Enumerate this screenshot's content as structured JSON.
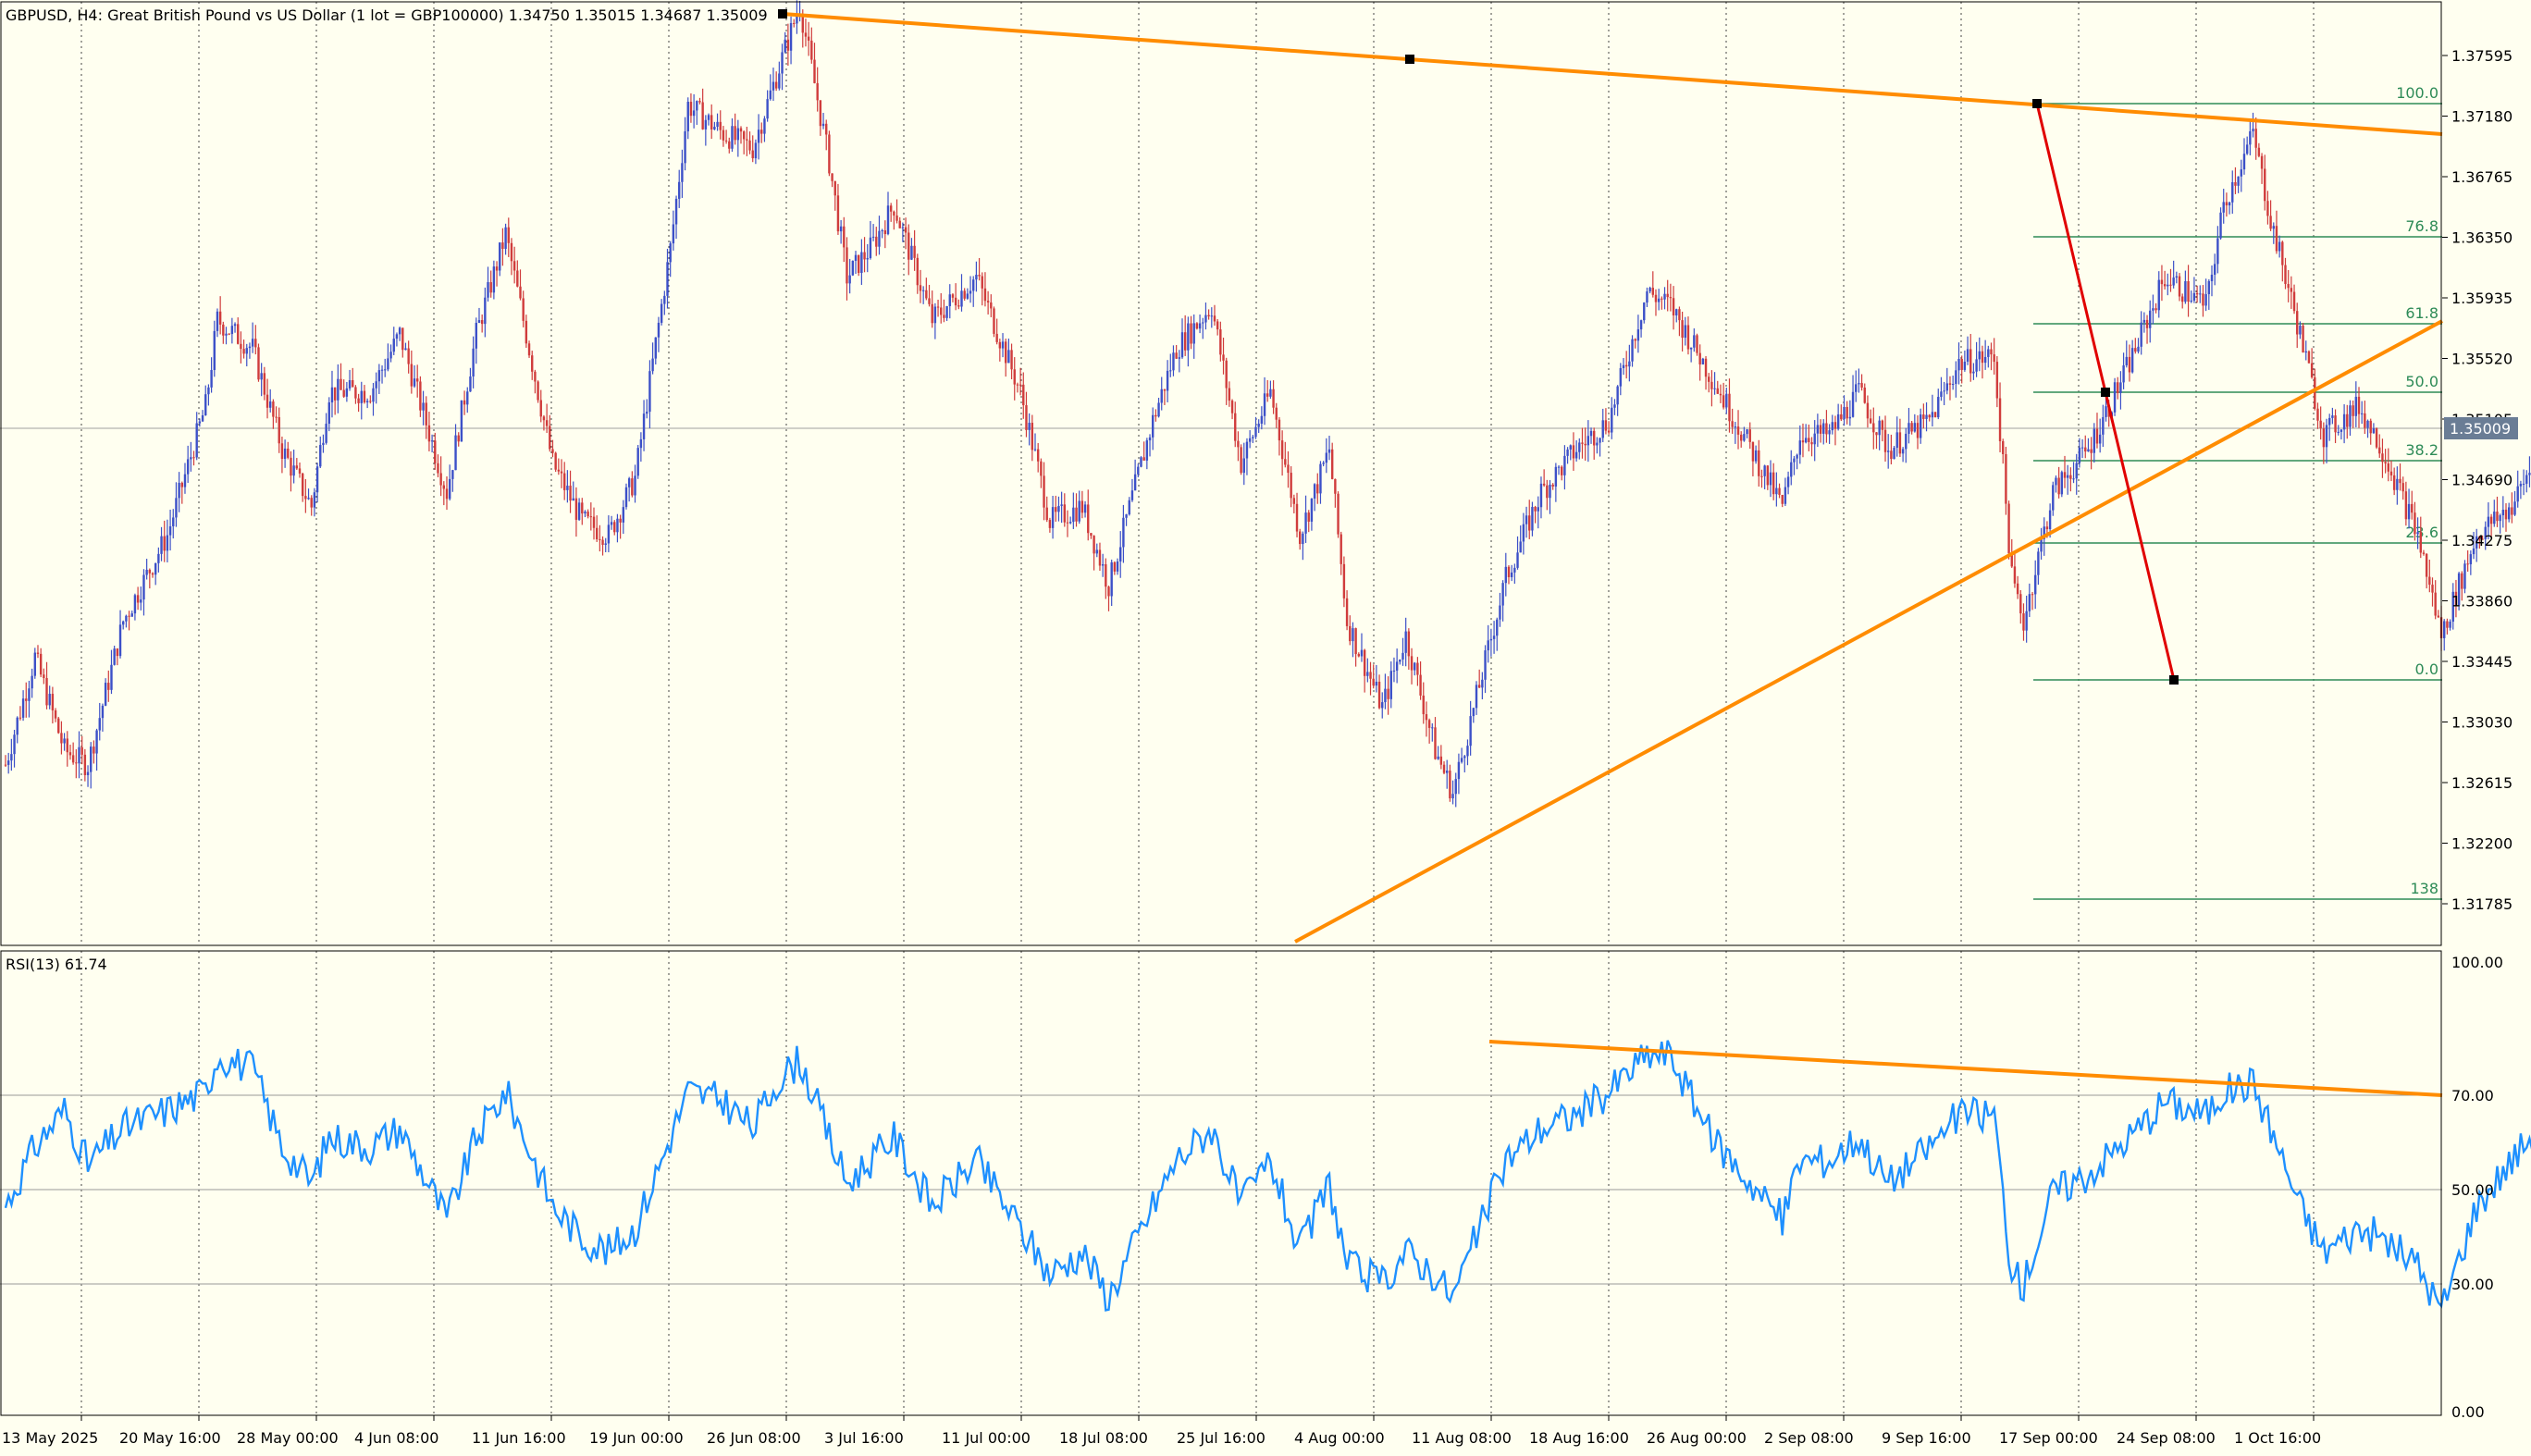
{
  "chart_data": [
    {
      "type": "candlestick",
      "title": "GBPUSD, H4:  Great British Pound vs US Dollar (1 lot = GBP100000)  1.34750 1.35015 1.34687 1.35009",
      "price_labels": [
        "1.37595",
        "1.37180",
        "1.36765",
        "1.36350",
        "1.35935",
        "1.35520",
        "1.35105",
        "1.34690",
        "1.34275",
        "1.33860",
        "1.33445",
        "1.33030",
        "1.32615",
        "1.32200",
        "1.31785"
      ],
      "ylim": [
        1.3134,
        1.3788
      ],
      "current_price": 1.35009,
      "current_price_label": "1.35009",
      "x_labels": [
        "13 May 2025",
        "20 May 16:00",
        "28 May 00:00",
        "4 Jun 08:00",
        "11 Jun 16:00",
        "19 Jun 00:00",
        "26 Jun 08:00",
        "3 Jul 16:00",
        "11 Jul 00:00",
        "18 Jul 08:00",
        "25 Jul 16:00",
        "4 Aug 00:00",
        "11 Aug 08:00",
        "18 Aug 16:00",
        "26 Aug 00:00",
        "2 Sep 08:00",
        "9 Sep 16:00",
        "17 Sep 00:00",
        "24 Sep 08:00",
        "1 Oct 16:00"
      ],
      "bar_count": 830,
      "bull_color": "#3c50c8",
      "bear_color": "#d03c3c",
      "price_path": [
        [
          0,
          1.326
        ],
        [
          10,
          1.3335
        ],
        [
          20,
          1.327
        ],
        [
          28,
          1.326
        ],
        [
          40,
          1.336
        ],
        [
          55,
          1.342
        ],
        [
          68,
          1.351
        ],
        [
          72,
          1.357
        ],
        [
          84,
          1.355
        ],
        [
          94,
          1.348
        ],
        [
          104,
          1.344
        ],
        [
          110,
          1.352
        ],
        [
          124,
          1.352
        ],
        [
          134,
          1.356
        ],
        [
          150,
          1.345
        ],
        [
          160,
          1.356
        ],
        [
          170,
          1.363
        ],
        [
          186,
          1.347
        ],
        [
          196,
          1.343
        ],
        [
          205,
          1.342
        ],
        [
          214,
          1.346
        ],
        [
          226,
          1.362
        ],
        [
          232,
          1.372
        ],
        [
          244,
          1.37
        ],
        [
          254,
          1.369
        ],
        [
          262,
          1.374
        ],
        [
          270,
          1.379
        ],
        [
          280,
          1.368
        ],
        [
          286,
          1.36
        ],
        [
          294,
          1.362
        ],
        [
          302,
          1.365
        ],
        [
          315,
          1.357
        ],
        [
          330,
          1.36
        ],
        [
          345,
          1.352
        ],
        [
          355,
          1.343
        ],
        [
          366,
          1.344
        ],
        [
          375,
          1.3385
        ],
        [
          390,
          1.35
        ],
        [
          398,
          1.355
        ],
        [
          410,
          1.358
        ],
        [
          420,
          1.347
        ],
        [
          430,
          1.352
        ],
        [
          440,
          1.342
        ],
        [
          450,
          1.348
        ],
        [
          456,
          1.336
        ],
        [
          468,
          1.33
        ],
        [
          476,
          1.335
        ],
        [
          486,
          1.327
        ],
        [
          492,
          1.324
        ],
        [
          510,
          1.339
        ],
        [
          522,
          1.345
        ],
        [
          534,
          1.348
        ],
        [
          545,
          1.35
        ],
        [
          558,
          1.359
        ],
        [
          566,
          1.358
        ],
        [
          580,
          1.353
        ],
        [
          596,
          1.347
        ],
        [
          604,
          1.344
        ],
        [
          610,
          1.349
        ],
        [
          620,
          1.349
        ],
        [
          630,
          1.352
        ],
        [
          640,
          1.348
        ],
        [
          654,
          1.35
        ],
        [
          664,
          1.354
        ],
        [
          676,
          1.3545
        ],
        [
          682,
          1.339
        ],
        [
          686,
          1.336
        ],
        [
          696,
          1.345
        ],
        [
          708,
          1.348
        ],
        [
          722,
          1.354
        ],
        [
          734,
          1.36
        ],
        [
          748,
          1.358
        ],
        [
          754,
          1.365
        ],
        [
          764,
          1.37
        ],
        [
          770,
          1.364
        ],
        [
          780,
          1.356
        ],
        [
          788,
          1.349
        ],
        [
          800,
          1.351
        ],
        [
          808,
          1.348
        ],
        [
          820,
          1.342
        ],
        [
          828,
          1.335
        ],
        [
          840,
          1.342
        ],
        [
          852,
          1.344
        ],
        [
          864,
          1.349
        ],
        [
          872,
          1.348
        ],
        [
          876,
          1.3495
        ]
      ],
      "fibonacci": {
        "levels": [
          {
            "label": "100.0",
            "price": 1.3722
          },
          {
            "label": "76.8",
            "price": 1.3635
          },
          {
            "label": "61.8",
            "price": 1.3571
          },
          {
            "label": "50.0",
            "price": 1.35285
          },
          {
            "label": "38.2",
            "price": 1.3478
          },
          {
            "label": "23.6",
            "price": 1.3422
          },
          {
            "label": "0.0",
            "price": 1.3328
          },
          {
            "label": "138",
            "price": 1.3185
          }
        ],
        "color": "#2e8b57"
      },
      "trendlines": [
        {
          "name": "upper-resistance",
          "color": "#ff8c00",
          "points": [
            [
              486,
              1.3788
            ],
            [
              860,
              1.3707
            ]
          ]
        },
        {
          "name": "lower-support",
          "color": "#ff8c00",
          "points": [
            [
              492,
              1.3136
            ],
            [
              860,
              1.3576
            ]
          ]
        }
      ],
      "zigzag": {
        "color": "#e00000",
        "points": [
          [
            778,
            1.3722
          ],
          [
            802,
            1.3528
          ],
          [
            832,
            1.3326
          ]
        ]
      },
      "anchor_points": [
        [
          486,
          1.3788
        ],
        [
          540,
          1.3761
        ],
        [
          778,
          1.3722
        ],
        [
          802,
          1.3528
        ],
        [
          832,
          1.3326
        ]
      ]
    },
    {
      "type": "line",
      "title": "RSI(13) 61.74",
      "ylim": [
        0,
        100
      ],
      "y_labels": [
        "100.00",
        "70.00",
        "50.00",
        "30.00",
        "0.00"
      ],
      "levels": [
        70,
        50,
        30
      ],
      "series_color": "#1e90ff",
      "rsi_path": [
        [
          0,
          45
        ],
        [
          10,
          58
        ],
        [
          20,
          66
        ],
        [
          28,
          54
        ],
        [
          40,
          62
        ],
        [
          55,
          66
        ],
        [
          68,
          70
        ],
        [
          72,
          78
        ],
        [
          84,
          75
        ],
        [
          94,
          58
        ],
        [
          104,
          50
        ],
        [
          110,
          60
        ],
        [
          124,
          58
        ],
        [
          134,
          62
        ],
        [
          150,
          42
        ],
        [
          160,
          60
        ],
        [
          170,
          70
        ],
        [
          186,
          45
        ],
        [
          196,
          38
        ],
        [
          205,
          35
        ],
        [
          214,
          40
        ],
        [
          226,
          60
        ],
        [
          232,
          70
        ],
        [
          244,
          68
        ],
        [
          254,
          62
        ],
        [
          262,
          72
        ],
        [
          270,
          77
        ],
        [
          280,
          60
        ],
        [
          286,
          50
        ],
        [
          294,
          55
        ],
        [
          302,
          60
        ],
        [
          315,
          45
        ],
        [
          330,
          55
        ],
        [
          345,
          40
        ],
        [
          355,
          30
        ],
        [
          366,
          35
        ],
        [
          375,
          25
        ],
        [
          390,
          45
        ],
        [
          398,
          55
        ],
        [
          410,
          62
        ],
        [
          420,
          45
        ],
        [
          430,
          55
        ],
        [
          440,
          35
        ],
        [
          450,
          50
        ],
        [
          456,
          32
        ],
        [
          468,
          28
        ],
        [
          476,
          35
        ],
        [
          486,
          30
        ],
        [
          492,
          25
        ],
        [
          510,
          55
        ],
        [
          522,
          62
        ],
        [
          534,
          65
        ],
        [
          545,
          70
        ],
        [
          558,
          78
        ],
        [
          566,
          78
        ],
        [
          580,
          60
        ],
        [
          596,
          48
        ],
        [
          604,
          42
        ],
        [
          610,
          55
        ],
        [
          620,
          55
        ],
        [
          630,
          60
        ],
        [
          640,
          50
        ],
        [
          654,
          58
        ],
        [
          664,
          65
        ],
        [
          676,
          65
        ],
        [
          682,
          30
        ],
        [
          686,
          28
        ],
        [
          696,
          48
        ],
        [
          708,
          52
        ],
        [
          722,
          60
        ],
        [
          734,
          68
        ],
        [
          748,
          65
        ],
        [
          754,
          70
        ],
        [
          764,
          72
        ],
        [
          770,
          62
        ],
        [
          780,
          45
        ],
        [
          788,
          35
        ],
        [
          800,
          40
        ],
        [
          808,
          38
        ],
        [
          820,
          32
        ],
        [
          828,
          22
        ],
        [
          840,
          45
        ],
        [
          852,
          55
        ],
        [
          864,
          65
        ],
        [
          872,
          60
        ],
        [
          876,
          61.74
        ]
      ],
      "trendline": {
        "color": "#ff8c00",
        "points": [
          [
            563,
            82
          ],
          [
            860,
            68
          ]
        ]
      }
    }
  ]
}
